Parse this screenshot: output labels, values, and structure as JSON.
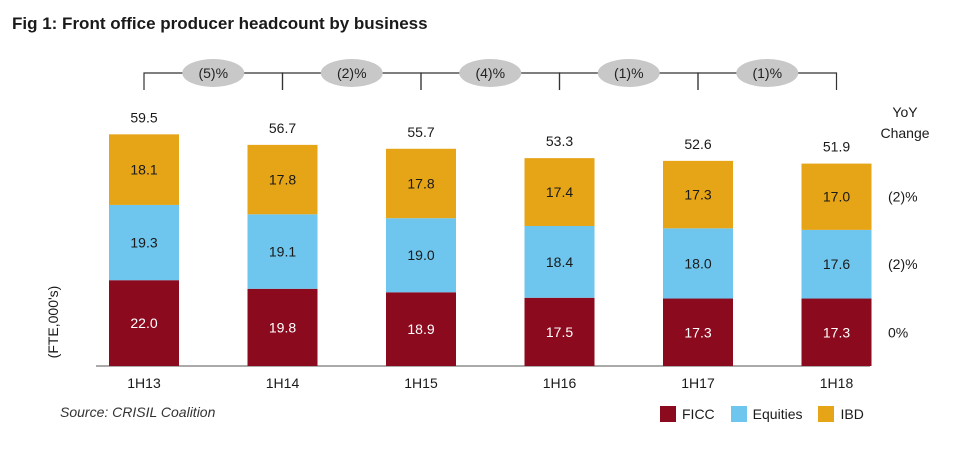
{
  "title": "Fig 1: Front office producer headcount by business",
  "source": "Source: CRISIL Coalition",
  "yoy_header": [
    "YoY",
    "Change"
  ],
  "colors": {
    "FICC": "#8B0A1E",
    "Equities": "#6EC6EE",
    "IBD": "#E6A417",
    "bubble": "#c8c8c8"
  },
  "chart_data": {
    "type": "bar",
    "stacked": true,
    "categories": [
      "1H13",
      "1H14",
      "1H15",
      "1H16",
      "1H17",
      "1H18"
    ],
    "series": [
      {
        "name": "FICC",
        "values": [
          22.0,
          19.8,
          18.9,
          17.5,
          17.3,
          17.3
        ],
        "labels": [
          "22.0",
          "19.8",
          "18.9",
          "17.5",
          "17.3",
          "17.3"
        ]
      },
      {
        "name": "Equities",
        "values": [
          19.3,
          19.1,
          19.0,
          18.4,
          18.0,
          17.6
        ],
        "labels": [
          "19.3",
          "19.1",
          "19.0",
          "18.4",
          "18.0",
          "17.6"
        ]
      },
      {
        "name": "IBD",
        "values": [
          18.1,
          17.8,
          17.8,
          17.4,
          17.3,
          17.0
        ],
        "labels": [
          "18.1",
          "17.8",
          "17.8",
          "17.4",
          "17.3",
          "17.0"
        ]
      }
    ],
    "totals": [
      "59.5",
      "56.7",
      "55.7",
      "53.3",
      "52.6",
      "51.9"
    ],
    "period_changes": [
      "(5)%",
      "(2)%",
      "(4)%",
      "(1)%",
      "(1)%"
    ],
    "yoy_change": {
      "FICC": "0%",
      "Equities": "(2)%",
      "IBD": "(2)%"
    },
    "ylabel": "(FTE,000's)",
    "legend": [
      "FICC",
      "Equities",
      "IBD"
    ]
  }
}
